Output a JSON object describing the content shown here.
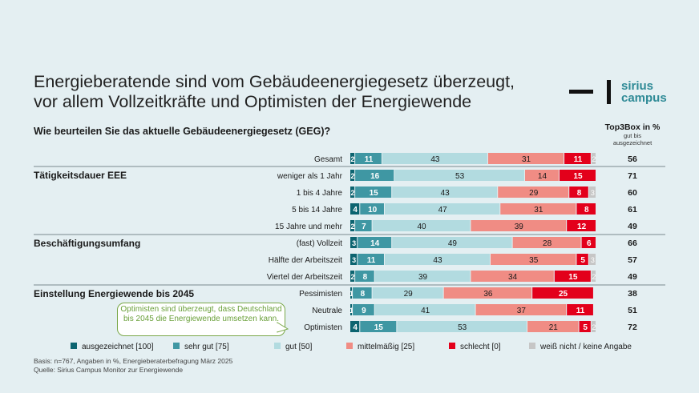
{
  "title_lines": [
    "Energieberatende sind vom Gebäudeenergiegesetz überzeugt,",
    "vor allem Vollzeitkräfte und Optimisten der Energiewende"
  ],
  "logo": {
    "line1": "sirius",
    "line2": "campus",
    "color": "#2e8a96"
  },
  "question": "Wie beurteilen Sie das aktuelle Gebäudeenergiegesetz (GEG)?",
  "top3box": {
    "heading": "Top3Box in %",
    "sub_line1": "gut bis",
    "sub_line2": "ausgezeichnet"
  },
  "chart_data": {
    "type": "bar",
    "orientation": "horizontal",
    "stacked": true,
    "xlim": [
      0,
      100
    ],
    "unit": "%",
    "categories": [
      "Gesamt",
      "weniger als 1 Jahr",
      "1 bis 4 Jahre",
      "5 bis 14 Jahre",
      "15 Jahre und mehr",
      "(fast) Vollzeit",
      "Hälfte der Arbeitszeit",
      "Viertel der Arbeitszeit",
      "Pessimisten",
      "Neutrale",
      "Optimisten"
    ],
    "groups": [
      {
        "label": "Tätigkeitsdauer EEE",
        "categories": [
          "weniger als 1 Jahr",
          "1 bis 4 Jahre",
          "5 bis 14 Jahre",
          "15 Jahre und mehr"
        ]
      },
      {
        "label": "Beschäftigungsumfang",
        "categories": [
          "(fast) Vollzeit",
          "Hälfte der Arbeitszeit",
          "Viertel der Arbeitszeit"
        ]
      },
      {
        "label": "Einstellung Energiewende bis 2045",
        "categories": [
          "Pessimisten",
          "Neutrale",
          "Optimisten"
        ]
      }
    ],
    "series": [
      {
        "name": "ausgezeichnet [100]",
        "color": "#0c6470",
        "values": [
          2,
          2,
          2,
          4,
          2,
          3,
          3,
          2,
          1,
          1,
          4
        ]
      },
      {
        "name": "sehr gut [75]",
        "color": "#3f97a3",
        "values": [
          11,
          16,
          15,
          10,
          7,
          14,
          11,
          8,
          8,
          9,
          15
        ]
      },
      {
        "name": "gut [50]",
        "color": "#b2dbe0",
        "values": [
          43,
          53,
          43,
          47,
          40,
          49,
          43,
          39,
          29,
          41,
          53
        ]
      },
      {
        "name": "mittelmäßig [25]",
        "color": "#f08c84",
        "values": [
          31,
          14,
          29,
          31,
          39,
          28,
          35,
          34,
          36,
          37,
          21
        ]
      },
      {
        "name": "schlecht [0]",
        "color": "#e3001b",
        "values": [
          11,
          15,
          8,
          8,
          12,
          6,
          5,
          15,
          25,
          11,
          5
        ]
      },
      {
        "name": "weiß nicht / keine Angabe",
        "color": "#c6c6c6",
        "values": [
          2,
          0,
          3,
          0,
          0,
          0,
          3,
          2,
          0,
          0,
          2
        ]
      }
    ],
    "top3box_values": [
      56,
      71,
      60,
      61,
      49,
      66,
      57,
      49,
      38,
      51,
      72
    ]
  },
  "callout": "Optimisten sind überzeugt, dass Deutschland bis 2045 die Energiewende umsetzen kann.",
  "footnote": {
    "line1": "Basis: n=767, Angaben in %, Energieberaterbefragung März 2025",
    "line2": "Quelle: Sirius Campus Monitor zur Energiewende"
  }
}
